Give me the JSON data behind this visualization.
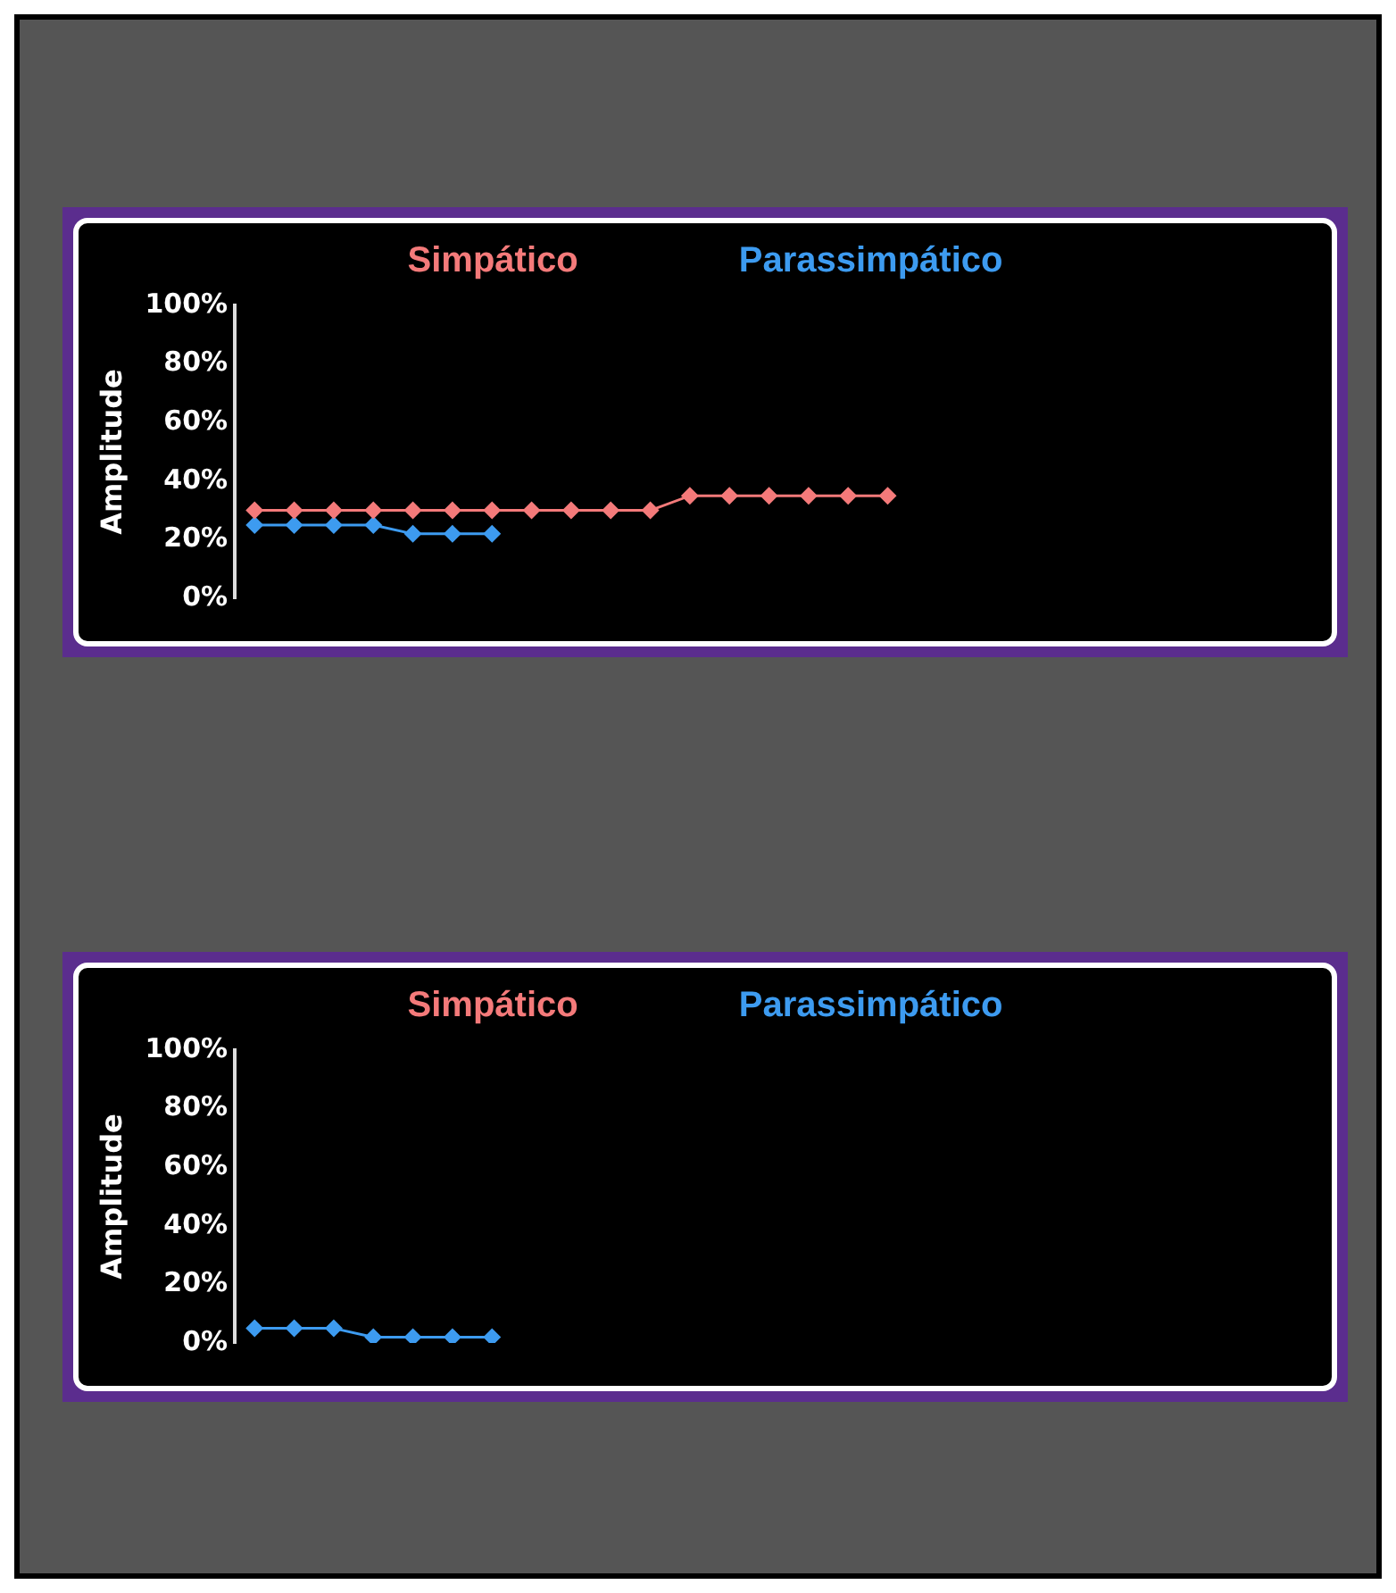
{
  "chart_data": [
    {
      "type": "line",
      "categories": [
        null,
        null,
        null,
        null,
        null,
        null,
        null,
        null,
        null,
        null,
        null,
        null,
        null,
        null,
        null,
        null,
        null,
        null,
        null,
        null,
        null,
        null,
        null,
        null,
        null,
        null,
        null
      ],
      "series": [
        {
          "name": "Simpático",
          "color": "#f47a7a",
          "values": [
            30,
            30,
            30,
            30,
            30,
            30,
            30,
            30,
            30,
            30,
            30,
            35,
            35,
            35,
            35,
            35,
            35,
            null,
            null,
            null,
            null,
            null,
            null,
            null,
            null,
            null,
            null
          ]
        },
        {
          "name": "Parassimpático",
          "color": "#3d9bf0",
          "values": [
            25,
            25,
            25,
            25,
            22,
            22,
            22,
            null,
            null,
            null,
            null,
            null,
            null,
            null,
            null,
            null,
            null,
            null,
            null,
            null,
            null,
            null,
            null,
            null,
            null,
            null,
            null
          ]
        }
      ],
      "ylabel": "Amplitude",
      "ylim": [
        0,
        100
      ],
      "yticks": [
        {
          "value": 0,
          "label": "0%"
        },
        {
          "value": 20,
          "label": "20%"
        },
        {
          "value": 40,
          "label": "40%"
        },
        {
          "value": 60,
          "label": "60%"
        },
        {
          "value": 80,
          "label": "80%"
        },
        {
          "value": 100,
          "label": "100%"
        }
      ],
      "grid": false,
      "legend": "top",
      "marker": "diamond",
      "tick_labels": "y"
    },
    {
      "type": "line",
      "categories": [
        null,
        null,
        null,
        null,
        null,
        null,
        null,
        null,
        null,
        null,
        null,
        null,
        null,
        null,
        null,
        null,
        null,
        null,
        null,
        null,
        null,
        null,
        null,
        null,
        null,
        null,
        null
      ],
      "series": [
        {
          "name": "Simpático",
          "color": "#f47a7a",
          "values": [
            null,
            null,
            null,
            null,
            null,
            null,
            null,
            null,
            null,
            null,
            null,
            null,
            null,
            null,
            null,
            null,
            null,
            null,
            null,
            null,
            null,
            null,
            null,
            null,
            null,
            null,
            null
          ]
        },
        {
          "name": "Parassimpático",
          "color": "#3d9bf0",
          "values": [
            5,
            5,
            5,
            2,
            2,
            2,
            2,
            null,
            null,
            null,
            null,
            null,
            null,
            null,
            null,
            null,
            null,
            null,
            null,
            null,
            null,
            null,
            null,
            null,
            null,
            null,
            null
          ]
        }
      ],
      "ylabel": "Amplitude",
      "ylim": [
        0,
        100
      ],
      "yticks": [
        {
          "value": 0,
          "label": "0%"
        },
        {
          "value": 20,
          "label": "20%"
        },
        {
          "value": 40,
          "label": "40%"
        },
        {
          "value": 60,
          "label": "60%"
        },
        {
          "value": 80,
          "label": "80%"
        },
        {
          "value": 100,
          "label": "100%"
        }
      ],
      "grid": false,
      "legend": "top",
      "marker": "diamond",
      "tick_labels": "y"
    }
  ]
}
